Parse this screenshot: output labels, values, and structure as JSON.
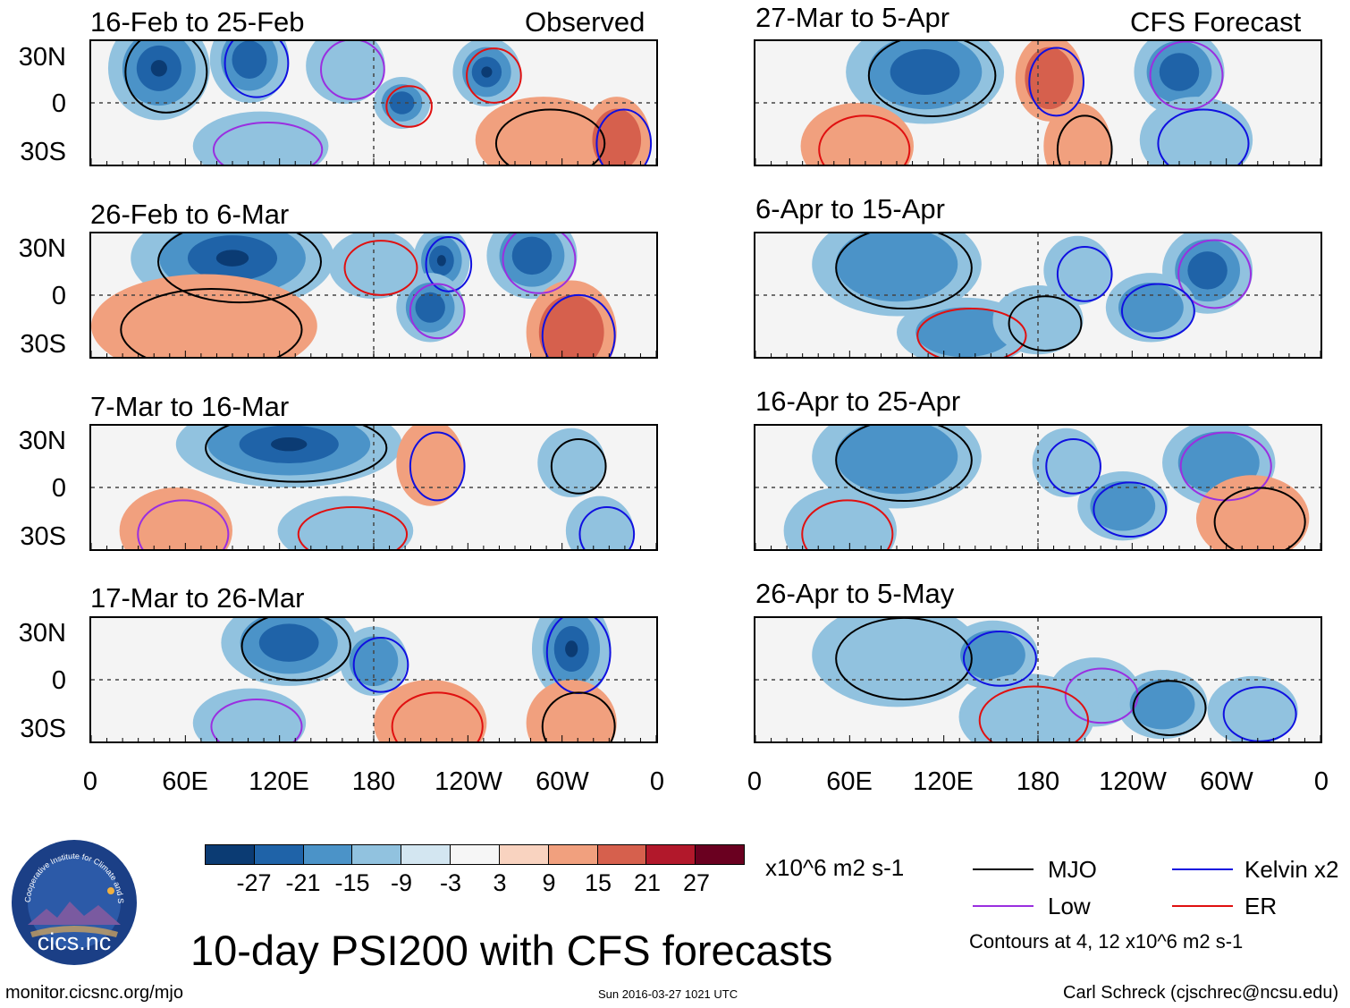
{
  "chart_data": {
    "type": "heatmap",
    "title": "10-day PSI200 with CFS forecasts",
    "observed_label": "Observed",
    "forecast_label": "CFS Forecast",
    "units": "x10^6 m2 s-1",
    "colorbar": {
      "ticks": [
        "-27",
        "-21",
        "-15",
        "-9",
        "-3",
        "3",
        "9",
        "15",
        "21",
        "27"
      ],
      "colors": [
        "#0b3b73",
        "#1f63a8",
        "#4b93c8",
        "#91c2df",
        "#d3e6f1",
        "#f6f6f6",
        "#f9d3c0",
        "#f1a07e",
        "#d6604d",
        "#b2182b",
        "#6a0020"
      ]
    },
    "y_ticks": [
      "30N",
      "0",
      "30S"
    ],
    "x_ticks": [
      "0",
      "60E",
      "120E",
      "180",
      "120W",
      "60W",
      "0"
    ],
    "legend": [
      {
        "name": "MJO",
        "color": "#000000"
      },
      {
        "name": "Kelvin x2",
        "color": "#1010e0"
      },
      {
        "name": "Low",
        "color": "#9a2fe0"
      },
      {
        "name": "ER",
        "color": "#e01010"
      }
    ],
    "contour_note": "Contours at 4, 12 x10^6 m2 s-1",
    "panels": [
      {
        "period": "16-Feb to 25-Feb",
        "source": "Observed"
      },
      {
        "period": "26-Feb to 6-Mar",
        "source": "Observed"
      },
      {
        "period": "7-Mar to 16-Mar",
        "source": "Observed"
      },
      {
        "period": "17-Mar to 26-Mar",
        "source": "Observed"
      },
      {
        "period": "27-Mar to 5-Apr",
        "source": "CFS Forecast"
      },
      {
        "period": "6-Apr to 15-Apr",
        "source": "CFS Forecast"
      },
      {
        "period": "16-Apr to 25-Apr",
        "source": "CFS Forecast"
      },
      {
        "period": "26-Apr to 5-May",
        "source": "CFS Forecast"
      }
    ]
  },
  "logo": {
    "text": "cics.nc",
    "ring_text": "Cooperative Institute for Climate and Satellites"
  },
  "footer": {
    "url": "monitor.cicsnc.org/mjo",
    "timestamp": "Sun 2016-03-27 1021 UTC",
    "author": "Carl Schreck (cjschrec@ncsu.edu)"
  }
}
